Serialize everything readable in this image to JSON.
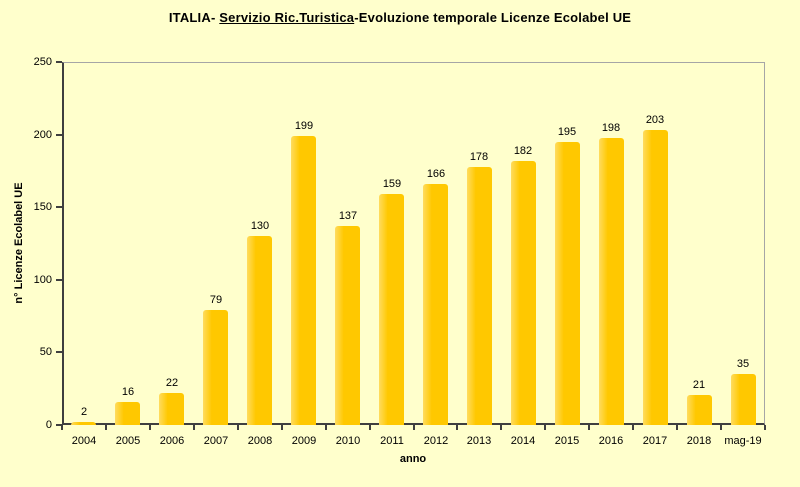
{
  "title": {
    "prefix": "ITALIA- ",
    "underlined": "Servizio Ric.Turistica",
    "suffix": "-Evoluzione temporale Licenze Ecolabel UE"
  },
  "chart_data": {
    "type": "bar",
    "title": "ITALIA- Servizio Ric.Turistica-Evoluzione temporale Licenze Ecolabel UE",
    "categories": [
      "2004",
      "2005",
      "2006",
      "2007",
      "2008",
      "2009",
      "2010",
      "2011",
      "2012",
      "2013",
      "2014",
      "2015",
      "2016",
      "2017",
      "2018",
      "mag-19"
    ],
    "values": [
      2,
      16,
      22,
      79,
      130,
      199,
      137,
      159,
      166,
      178,
      182,
      195,
      198,
      203,
      21,
      35
    ],
    "xlabel": "anno",
    "ylabel": "n° Licenze Ecolabel UE",
    "ylim": [
      0,
      250
    ],
    "yticks": [
      0,
      50,
      100,
      150,
      200,
      250
    ],
    "grid": false,
    "legend": false,
    "data_labels": true,
    "colors": {
      "bar": "#FFC800",
      "bar_highlight": "#FFDC5F",
      "background": "#FFFFCC",
      "axis": "#3F3F3F",
      "plot_border": "#A6A6A6",
      "text": "#000000"
    }
  }
}
